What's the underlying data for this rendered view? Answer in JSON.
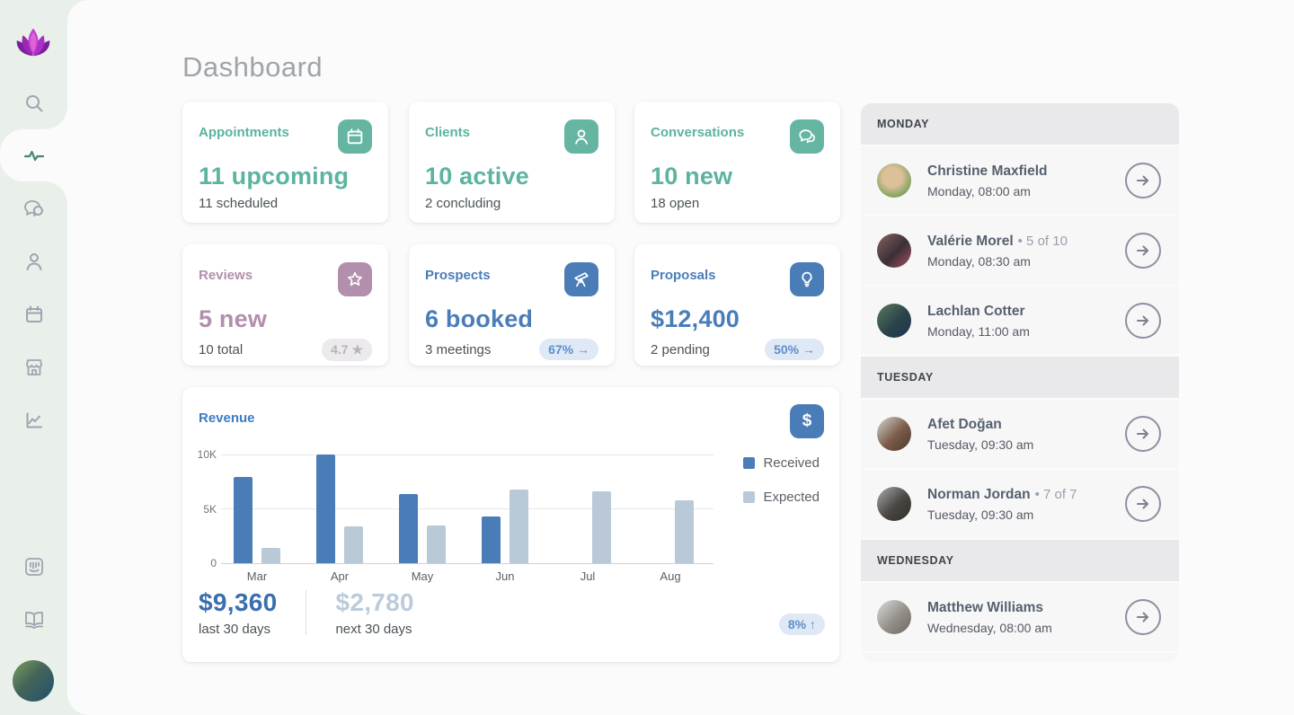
{
  "header": {
    "title": "Dashboard"
  },
  "sidebar": {
    "logo": "lotus-logo",
    "items": [
      {
        "icon": "search-icon"
      },
      {
        "icon": "activity-icon",
        "active": true
      },
      {
        "icon": "conversations-icon"
      },
      {
        "icon": "clients-icon"
      },
      {
        "icon": "calendar-icon"
      },
      {
        "icon": "storefront-icon"
      },
      {
        "icon": "reports-icon"
      },
      {
        "icon": "kiosk-icon"
      },
      {
        "icon": "library-icon"
      }
    ]
  },
  "cards": [
    {
      "title": "Appointments",
      "value": "11 upcoming",
      "sub": "11 scheduled",
      "badge": "",
      "icon": "calendar-icon",
      "theme": "teal"
    },
    {
      "title": "Clients",
      "value": "10 active",
      "sub": "2 concluding",
      "badge": "",
      "icon": "person-icon",
      "theme": "teal"
    },
    {
      "title": "Conversations",
      "value": "10 new",
      "sub": "18 open",
      "badge": "",
      "icon": "chat-icon",
      "theme": "teal"
    },
    {
      "title": "Reviews",
      "value": "5 new",
      "sub": "10 total",
      "badge": "4.7 ★",
      "icon": "star-icon",
      "theme": "mauve"
    },
    {
      "title": "Prospects",
      "value": "6 booked",
      "sub": "3 meetings",
      "badge": "67% →",
      "icon": "telescope-icon",
      "theme": "blue"
    },
    {
      "title": "Proposals",
      "value": "$12,400",
      "sub": "2 pending",
      "badge": "50% →",
      "icon": "lightbulb-icon",
      "theme": "blue"
    }
  ],
  "revenue": {
    "title": "Revenue",
    "icon": "dollar-icon",
    "legend": {
      "received": "Received",
      "expected": "Expected"
    },
    "summary": {
      "primary_value": "$9,360",
      "primary_label": "last 30 days",
      "secondary_value": "$2,780",
      "secondary_label": "next 30 days",
      "change_badge": "8% ↑"
    }
  },
  "chart_data": {
    "type": "bar",
    "title": "Revenue",
    "categories": [
      "Mar",
      "Apr",
      "May",
      "Jun",
      "Jul",
      "Aug"
    ],
    "series": [
      {
        "name": "Received",
        "values": [
          7900,
          10000,
          6400,
          4300,
          0,
          0
        ]
      },
      {
        "name": "Expected",
        "values": [
          1400,
          3400,
          3500,
          6800,
          6600,
          5800
        ]
      }
    ],
    "colors": {
      "Received": "#4a7db8",
      "Expected": "#b9c9d8"
    },
    "ylim": [
      0,
      10000
    ],
    "yticks": {
      "top": "10K",
      "mid": "5K",
      "base": "0"
    },
    "grid": true,
    "legend_position": "right"
  },
  "schedule": {
    "sections": [
      {
        "label": "MONDAY",
        "items": [
          {
            "name": "Christine Maxfield",
            "suffix": "",
            "time": "Monday, 08:00 am"
          },
          {
            "name": "Valérie Morel",
            "suffix": "• 5 of 10",
            "time": "Monday, 08:30 am"
          },
          {
            "name": "Lachlan Cotter",
            "suffix": "",
            "time": "Monday, 11:00 am"
          }
        ]
      },
      {
        "label": "TUESDAY",
        "items": [
          {
            "name": "Afet Doğan",
            "suffix": "",
            "time": "Tuesday, 09:30 am"
          },
          {
            "name": "Norman Jordan",
            "suffix": "• 7 of 7",
            "time": "Tuesday, 09:30 am"
          }
        ]
      },
      {
        "label": "WEDNESDAY",
        "items": [
          {
            "name": "Matthew Williams",
            "suffix": "",
            "time": "Wednesday, 08:00 am"
          }
        ]
      }
    ]
  },
  "colors": {
    "teal": "#66b5a3",
    "mauve": "#b18fad",
    "blue": "#4a7db8",
    "received_bar": "#4a7db8",
    "expected_bar": "#b9c9d8",
    "sidebar_bg": "#e9efe9",
    "surface_bg": "#fbfbfc",
    "badge_blue_bg": "#dfe9f6",
    "badge_blue_text": "#5d8fc9"
  }
}
